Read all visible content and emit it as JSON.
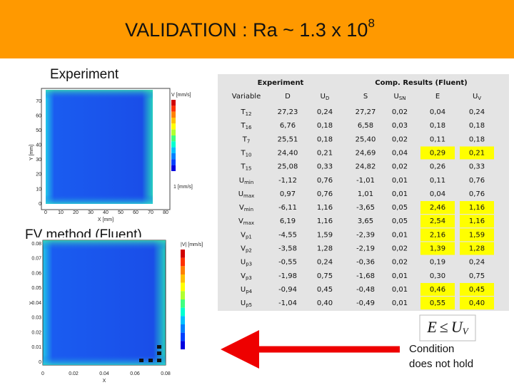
{
  "header": {
    "title": "VALIDATION : Ra ~ 1.3 x 10",
    "title_sup": "8"
  },
  "labels": {
    "experiment": "Experiment",
    "fv_method": "FV method (Fluent)"
  },
  "experiment_plot": {
    "y_label": "Y [mm]",
    "x_label": "X [mm]",
    "legend_title": "V [mm/s]",
    "reference_vector": "1 [mm/s]",
    "y_ticks": [
      "0",
      "10",
      "20",
      "30",
      "40",
      "50",
      "60",
      "70"
    ],
    "x_ticks": [
      "0",
      "10",
      "20",
      "30",
      "40",
      "50",
      "60",
      "70",
      "80"
    ]
  },
  "fluent_plot": {
    "y_label": "Y",
    "x_label": "X",
    "legend_title": "|V| [mm/s]",
    "y_ticks": [
      "0",
      "0.01",
      "0.02",
      "0.03",
      "0.04",
      "0.05",
      "0.06",
      "0.07",
      "0.08"
    ],
    "x_ticks": [
      "0",
      "0.02",
      "0.04",
      "0.06",
      "0.08"
    ]
  },
  "table": {
    "group_headers": [
      "Experiment",
      "Comp. Results (Fluent)"
    ],
    "columns": [
      {
        "base": "Variable"
      },
      {
        "base": "D"
      },
      {
        "base": "U",
        "sub": "D"
      },
      {
        "base": "S"
      },
      {
        "base": "U",
        "sub": "SN"
      },
      {
        "base": "E"
      },
      {
        "base": "U",
        "sub": "V"
      }
    ],
    "highlight_color": "#ffff00",
    "rows": [
      {
        "variable": {
          "base": "T",
          "sub": "12"
        },
        "cells": [
          "27,23",
          "0,24",
          "27,27",
          "0,02",
          "0,04",
          "0,24"
        ]
      },
      {
        "variable": {
          "base": "T",
          "sub": "16"
        },
        "cells": [
          "6,76",
          "0,18",
          "6,58",
          "0,03",
          "0,18",
          "0,18"
        ]
      },
      {
        "variable": {
          "base": "T",
          "sub": "7"
        },
        "cells": [
          "25,51",
          "0,18",
          "25,40",
          "0,02",
          "0,11",
          "0,18"
        ]
      },
      {
        "variable": {
          "base": "T",
          "sub": "10"
        },
        "cells": [
          "24,40",
          "0,21",
          "24,69",
          "0,04",
          "0,29",
          "0,21"
        ],
        "highlight": true
      },
      {
        "variable": {
          "base": "T",
          "sub": "15"
        },
        "cells": [
          "25,08",
          "0,33",
          "24,82",
          "0,02",
          "0,26",
          "0,33"
        ]
      },
      {
        "variable": {
          "base": "U",
          "sub": "min"
        },
        "cells": [
          "-1,12",
          "0,76",
          "-1,01",
          "0,01",
          "0,11",
          "0,76"
        ]
      },
      {
        "variable": {
          "base": "U",
          "sub": "max"
        },
        "cells": [
          "0,97",
          "0,76",
          "1,01",
          "0,01",
          "0,04",
          "0,76"
        ]
      },
      {
        "variable": {
          "base": "V",
          "sub": "min"
        },
        "cells": [
          "-6,11",
          "1,16",
          "-3,65",
          "0,05",
          "2,46",
          "1,16"
        ],
        "highlight": true
      },
      {
        "variable": {
          "base": "V",
          "sub": "max"
        },
        "cells": [
          "6,19",
          "1,16",
          "3,65",
          "0,05",
          "2,54",
          "1,16"
        ],
        "highlight": true
      },
      {
        "variable": {
          "base": "V",
          "sub": "p1"
        },
        "cells": [
          "-4,55",
          "1,59",
          "-2,39",
          "0,01",
          "2,16",
          "1,59"
        ],
        "highlight": true
      },
      {
        "variable": {
          "base": "V",
          "sub": "p2"
        },
        "cells": [
          "-3,58",
          "1,28",
          "-2,19",
          "0,02",
          "1,39",
          "1,28"
        ],
        "highlight": true
      },
      {
        "variable": {
          "base": "U",
          "sub": "p3"
        },
        "cells": [
          "-0,55",
          "0,24",
          "-0,36",
          "0,02",
          "0,19",
          "0,24"
        ]
      },
      {
        "variable": {
          "base": "V",
          "sub": "p3"
        },
        "cells": [
          "-1,98",
          "0,75",
          "-1,68",
          "0,01",
          "0,30",
          "0,75"
        ]
      },
      {
        "variable": {
          "base": "U",
          "sub": "p4"
        },
        "cells": [
          "-0,94",
          "0,45",
          "-0,48",
          "0,01",
          "0,46",
          "0,45"
        ],
        "highlight": true
      },
      {
        "variable": {
          "base": "U",
          "sub": "p5"
        },
        "cells": [
          "-1,04",
          "0,40",
          "-0,49",
          "0,01",
          "0,55",
          "0,40"
        ],
        "highlight": true
      }
    ]
  },
  "condition": {
    "formula": {
      "lhs": "E",
      "op": "≤",
      "rhs": "U",
      "sub": "V"
    },
    "lines": [
      "Condition",
      "does not hold"
    ]
  }
}
